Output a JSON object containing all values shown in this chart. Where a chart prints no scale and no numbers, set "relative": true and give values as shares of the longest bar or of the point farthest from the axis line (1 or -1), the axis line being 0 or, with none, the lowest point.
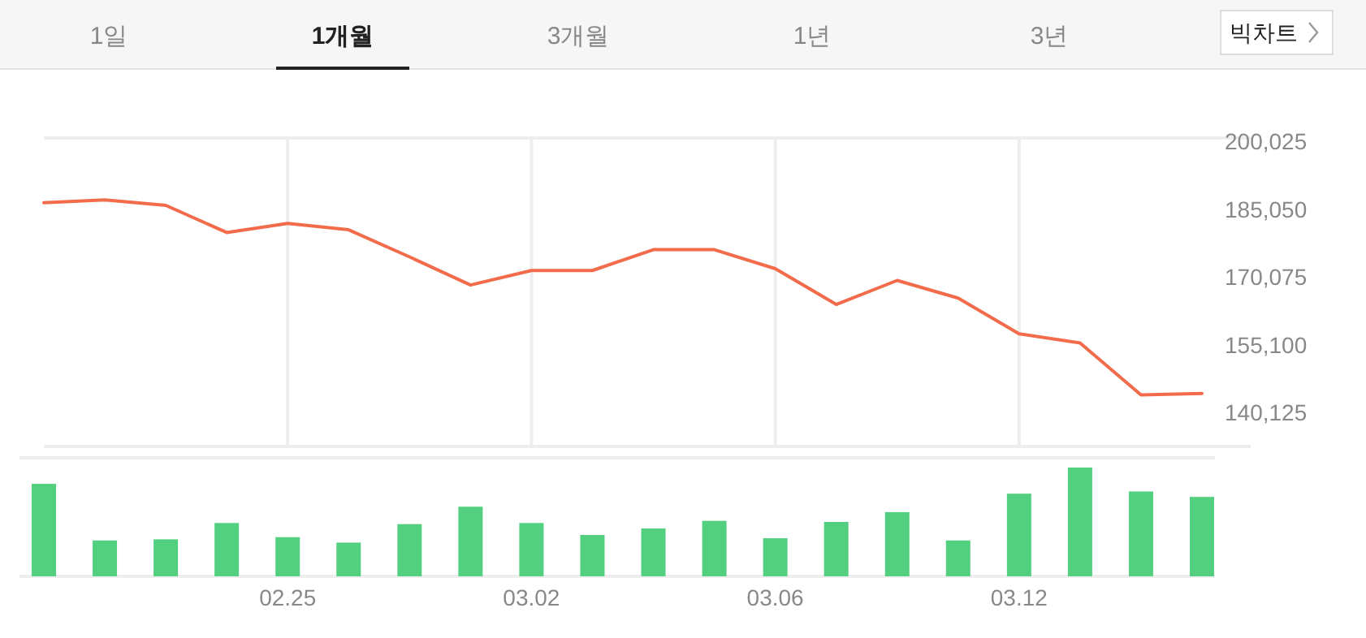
{
  "chart_data": [
    {
      "type": "other",
      "annotations": [
        "1일",
        "1개월",
        "3개월",
        "1년",
        "3년",
        "빅차트"
      ]
    },
    {
      "type": "line",
      "categories": [
        null,
        null,
        null,
        null,
        "02.25",
        null,
        null,
        null,
        "03.02",
        null,
        null,
        null,
        "03.06",
        null,
        null,
        null,
        "03.12",
        null,
        null,
        null
      ],
      "series": [
        {
          "color": "#f26b4b",
          "values": [
            186500,
            187100,
            185900,
            179900,
            181900,
            180500,
            174500,
            168300,
            171500,
            171500,
            176100,
            176100,
            171900,
            164000,
            169300,
            165400,
            157500,
            155500,
            144000,
            144300
          ]
        }
      ],
      "ylim": [
        132600,
        200800
      ],
      "yticks": [
        {
          "value": 140125,
          "label": "140,125"
        },
        {
          "value": 155100,
          "label": "155,100"
        },
        {
          "value": 170075,
          "label": "170,075"
        },
        {
          "value": 185050,
          "label": "185,050"
        },
        {
          "value": 200025,
          "label": "200,025"
        }
      ],
      "grid": "x",
      "tick_labels": "y",
      "marker": "none",
      "line_style": "solid"
    },
    {
      "type": "bar",
      "relative": true,
      "categories": [
        null,
        null,
        null,
        null,
        "02.25",
        null,
        null,
        null,
        "03.02",
        null,
        null,
        null,
        "03.06",
        null,
        null,
        null,
        "03.12",
        null,
        null,
        null
      ],
      "series": [
        {
          "color": "#52d07f",
          "values": [
            0.85,
            0.33,
            0.34,
            0.49,
            0.36,
            0.31,
            0.48,
            0.64,
            0.49,
            0.38,
            0.44,
            0.51,
            0.35,
            0.5,
            0.59,
            0.33,
            0.76,
            1,
            0.78,
            0.73
          ]
        }
      ],
      "tick_labels": "x",
      "grid": false
    }
  ]
}
